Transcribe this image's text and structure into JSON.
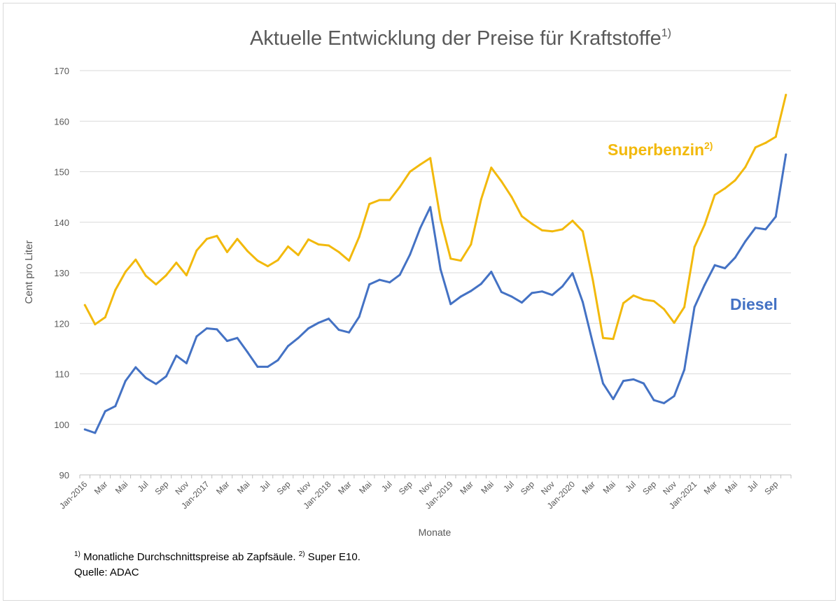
{
  "chart_data": {
    "type": "line",
    "title": "Aktuelle Entwicklung der Preise für Kraftstoffe",
    "title_superscript": "1)",
    "xlabel": "Monate",
    "ylabel": "Cent pro Liter",
    "ylim": [
      90,
      170
    ],
    "yticks": [
      90,
      100,
      110,
      120,
      130,
      140,
      150,
      160,
      170
    ],
    "grid": "horizontal",
    "x_tick_labels": [
      "Jan-2016",
      "Mar",
      "Mai",
      "Jul",
      "Sep",
      "Nov",
      "Jan-2017",
      "Mar",
      "Mai",
      "Jul",
      "Sep",
      "Nov",
      "Jan-2018",
      "Mar",
      "Mai",
      "Jul",
      "Sep",
      "Nov",
      "Jan-2019",
      "Mar",
      "Mai",
      "Jul",
      "Sep",
      "Nov",
      "Jan-2020",
      "Mar",
      "Mai",
      "Jul",
      "Sep",
      "Nov",
      "Jan-2021",
      "Mar",
      "Mai",
      "Jul",
      "Sep"
    ],
    "x_start": "2016-01",
    "x_end": "2021-10",
    "series": [
      {
        "name": "Superbenzin",
        "name_superscript": "2)",
        "color": "#f2b90c",
        "values": [
          123.6,
          119.8,
          121.2,
          126.6,
          130.2,
          132.6,
          129.4,
          127.7,
          129.5,
          132.0,
          129.5,
          134.4,
          136.7,
          137.3,
          134.1,
          136.7,
          134.3,
          132.4,
          131.3,
          132.5,
          135.2,
          133.5,
          136.6,
          135.6,
          135.4,
          134.1,
          132.4,
          137.1,
          143.6,
          144.4,
          144.4,
          147.0,
          150.0,
          151.4,
          152.7,
          140.6,
          132.8,
          132.4,
          135.6,
          144.5,
          150.8,
          148.1,
          145.0,
          141.2,
          139.7,
          138.4,
          138.2,
          138.6,
          140.3,
          138.2,
          128.5,
          117.1,
          116.9,
          124.0,
          125.5,
          124.7,
          124.4,
          122.8,
          120.1,
          123.2,
          135.1,
          139.5,
          145.4,
          146.7,
          148.3,
          150.9,
          154.8,
          155.7,
          156.9,
          165.2
        ]
      },
      {
        "name": "Diesel",
        "color": "#4472c4",
        "values": [
          99.0,
          98.3,
          102.6,
          103.6,
          108.6,
          111.3,
          109.2,
          108.0,
          109.5,
          113.6,
          112.1,
          117.4,
          119.0,
          118.8,
          116.5,
          117.1,
          114.3,
          111.4,
          111.4,
          112.7,
          115.5,
          117.1,
          119.0,
          120.1,
          120.9,
          118.7,
          118.2,
          121.3,
          127.7,
          128.6,
          128.1,
          129.6,
          133.6,
          138.8,
          143.0,
          130.7,
          123.8,
          125.3,
          126.4,
          127.8,
          130.2,
          126.2,
          125.3,
          124.1,
          126.0,
          126.3,
          125.6,
          127.3,
          129.9,
          124.2,
          116.0,
          108.1,
          105.0,
          108.6,
          108.9,
          108.1,
          104.8,
          104.2,
          105.6,
          110.8,
          123.2,
          127.6,
          131.5,
          130.9,
          133.0,
          136.2,
          138.9,
          138.6,
          141.1,
          153.4
        ]
      }
    ]
  },
  "footnote": {
    "line1_sup1": "1)",
    "line1_text1": " Monatliche Durchschnittspreise ab Zapfsäule. ",
    "line1_sup2": "2)",
    "line1_text2": " Super E10.",
    "line2": "Quelle: ADAC"
  }
}
